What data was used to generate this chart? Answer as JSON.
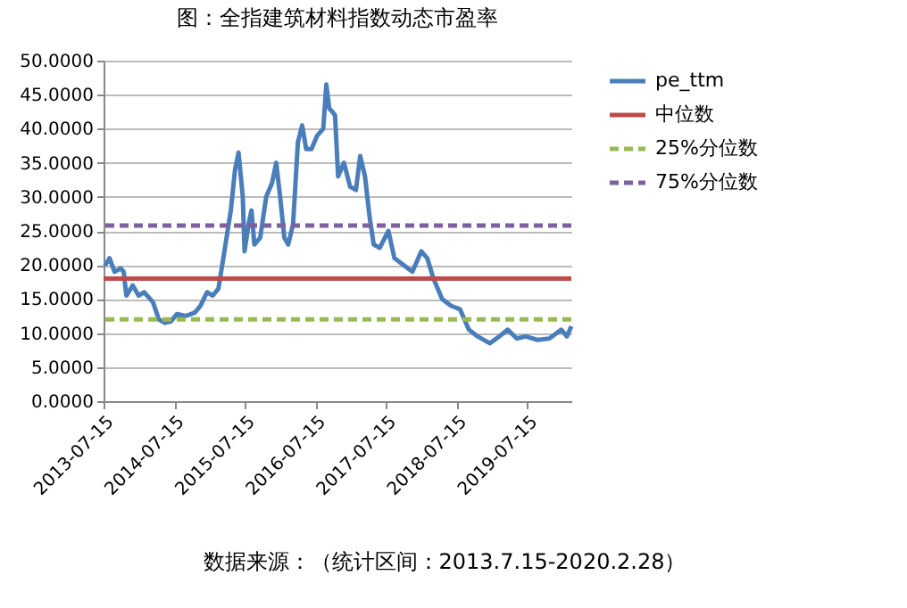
{
  "chart_data": {
    "type": "line",
    "title": "图：全指建筑材料指数动态市盈率",
    "x": [
      "2013-07-22",
      "2013-08-15",
      "2013-09-10",
      "2013-10-12",
      "2013-10-27",
      "2013-11-10",
      "2013-12-13",
      "2014-01-12",
      "2014-02-10",
      "2014-03-28",
      "2014-04-27",
      "2014-05-28",
      "2014-06-28",
      "2014-07-30",
      "2014-09-13",
      "2014-10-30",
      "2014-11-28",
      "2015-01-01",
      "2015-01-30",
      "2015-03-01",
      "2015-04-01",
      "2015-05-04",
      "2015-05-26",
      "2015-06-13",
      "2015-07-05",
      "2015-07-14",
      "2015-08-04",
      "2015-08-19",
      "2015-09-03",
      "2015-10-03",
      "2015-11-03",
      "2015-12-03",
      "2015-12-25",
      "2016-01-14",
      "2016-02-05",
      "2016-02-25",
      "2016-03-21",
      "2016-04-15",
      "2016-05-07",
      "2016-05-28",
      "2016-06-24",
      "2016-07-24",
      "2016-08-24",
      "2016-09-09",
      "2016-09-24",
      "2016-10-24",
      "2016-11-09",
      "2016-12-09",
      "2017-01-10",
      "2017-02-09",
      "2017-03-03",
      "2017-03-28",
      "2017-04-21",
      "2017-05-12",
      "2017-06-12",
      "2017-07-27",
      "2017-08-27",
      "2017-10-13",
      "2017-11-28",
      "2018-01-13",
      "2018-02-13",
      "2018-03-17",
      "2018-05-01",
      "2018-06-16",
      "2018-08-01",
      "2018-09-16",
      "2018-11-01",
      "2019-01-03",
      "2019-02-20",
      "2019-04-05",
      "2019-05-22",
      "2019-07-06",
      "2019-09-06",
      "2019-11-06",
      "2020-01-07",
      "2020-02-05",
      "2020-02-28"
    ],
    "series": [
      {
        "name": "pe_ttm",
        "color": "#4a7ebb",
        "values": [
          19.9,
          21,
          19,
          19.5,
          19,
          15.5,
          17,
          15.5,
          16,
          14.5,
          12,
          11.5,
          11.7,
          12.8,
          12.5,
          13,
          14,
          16,
          15.5,
          16.5,
          22,
          28,
          34,
          36.5,
          30,
          22,
          26,
          28,
          23,
          24,
          30,
          32,
          35,
          30,
          24,
          23,
          26,
          38,
          40.5,
          37,
          37,
          39,
          40,
          46.5,
          43,
          42,
          33,
          35,
          31.5,
          31,
          36,
          33,
          27,
          23,
          22.5,
          25,
          21,
          20,
          19,
          22,
          21,
          18,
          15,
          14,
          13.5,
          10.5,
          9.5,
          8.5,
          9.5,
          10.5,
          9.2,
          9.5,
          9,
          9.2,
          10.5,
          9.5,
          11
        ]
      }
    ],
    "ref_lines": [
      {
        "axis": "y",
        "value": 18,
        "label": "中位数",
        "color": "#be4b48",
        "line_style": "solid"
      },
      {
        "axis": "y",
        "value": 12,
        "label": "25%分位数",
        "color": "#98b954",
        "line_style": "dashed"
      },
      {
        "axis": "y",
        "value": 25.8,
        "label": "75%分位数",
        "color": "#7d60a0",
        "line_style": "dashed"
      }
    ],
    "xlim": [
      "2013-07-15",
      "2020-02-28"
    ],
    "xticks": [
      "2013-07-15",
      "2014-07-15",
      "2015-07-15",
      "2016-07-15",
      "2017-07-15",
      "2018-07-15",
      "2019-07-15"
    ],
    "ylim": [
      0,
      50
    ],
    "yticks": [
      {
        "value": 0,
        "label": "0.0000"
      },
      {
        "value": 5,
        "label": "5.0000"
      },
      {
        "value": 10,
        "label": "10.0000"
      },
      {
        "value": 15,
        "label": "15.0000"
      },
      {
        "value": 20,
        "label": "20.0000"
      },
      {
        "value": 25,
        "label": "25.0000"
      },
      {
        "value": 30,
        "label": "30.0000"
      },
      {
        "value": 35,
        "label": "35.0000"
      },
      {
        "value": 40,
        "label": "40.0000"
      },
      {
        "value": 45,
        "label": "45.0000"
      },
      {
        "value": 50,
        "label": "50.0000"
      }
    ],
    "grid": "y",
    "legend": "right",
    "marker": "none",
    "line_style": "solid",
    "annotations": [
      "数据来源：（统计区间：2013.7.15-2020.2.28）"
    ]
  }
}
